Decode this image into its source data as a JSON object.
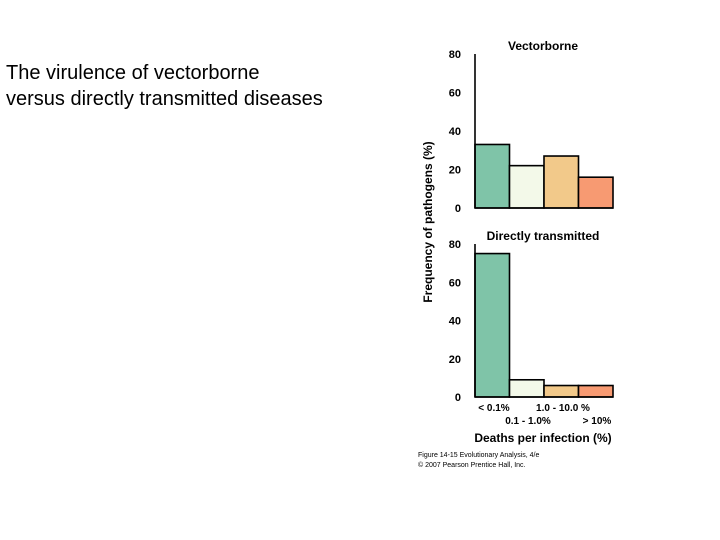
{
  "slide": {
    "title_line1": "The virulence of vectorborne",
    "title_line2": "versus directly transmitted diseases"
  },
  "figure": {
    "caption_line1": "Figure 14-15  Evolutionary Analysis, 4/e",
    "caption_line2": "© 2007 Pearson Prentice Hall, Inc."
  },
  "chart_data": [
    {
      "type": "bar",
      "title": "Vectorborne",
      "categories": [
        "< 0.1%",
        "0.1 - 1.0%",
        "1.0 - 10.0 %",
        "> 10%"
      ],
      "values": [
        33,
        22,
        27,
        16
      ],
      "ylabel": "Frequency of pathogens (%)",
      "xlabel": "",
      "ylim": [
        0,
        80
      ],
      "yticks": [
        0,
        20,
        40,
        60,
        80
      ],
      "bar_colors": [
        "#7fc4a8",
        "#f3f9e9",
        "#f2c98a",
        "#f79a72"
      ]
    },
    {
      "type": "bar",
      "title": "Directly transmitted",
      "categories": [
        "< 0.1%",
        "0.1 - 1.0%",
        "1.0 - 10.0 %",
        "> 10%"
      ],
      "values": [
        75,
        9,
        6,
        6
      ],
      "ylabel": "",
      "xlabel": "Deaths per infection (%)",
      "ylim": [
        0,
        80
      ],
      "yticks": [
        0,
        20,
        40,
        60,
        80
      ],
      "bar_colors": [
        "#7fc4a8",
        "#f3f9e9",
        "#f2c98a",
        "#f79a72"
      ]
    }
  ]
}
